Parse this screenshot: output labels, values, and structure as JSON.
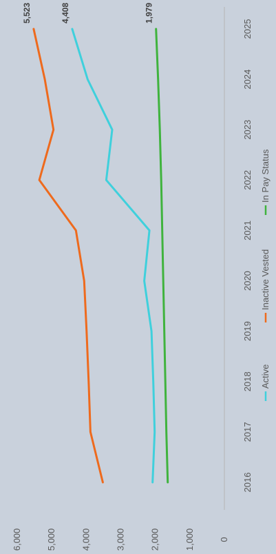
{
  "chart_data": {
    "type": "line",
    "orientation": "rotated-90-clockwise",
    "x": [
      "2016",
      "2017",
      "2018",
      "2019",
      "2020",
      "2021",
      "2022",
      "2023",
      "2024",
      "2025"
    ],
    "ylim": [
      0,
      6000
    ],
    "yticks": [
      0,
      1000,
      2000,
      3000,
      4000,
      5000,
      6000
    ],
    "ytick_labels": [
      "0",
      "1,000",
      "2,000",
      "3,000",
      "4,000",
      "5,000",
      "6,000"
    ],
    "grid": false,
    "legend_position": "bottom",
    "series": [
      {
        "name": "Active",
        "color": "#3fd0dc",
        "values": [
          2080,
          2020,
          2060,
          2110,
          2320,
          2170,
          3420,
          3250,
          3960,
          4408
        ]
      },
      {
        "name": "Inactive Vested",
        "color": "#ee6a1d",
        "values": [
          3520,
          3880,
          3930,
          3990,
          4060,
          4300,
          5360,
          4950,
          5200,
          5523
        ]
      },
      {
        "name": "In Pay Status",
        "color": "#3fb33d",
        "values": [
          1640,
          1680,
          1710,
          1740,
          1770,
          1800,
          1830,
          1870,
          1920,
          1979
        ]
      }
    ],
    "data_labels": [
      {
        "series": 1,
        "index": 9,
        "text": "5,523"
      },
      {
        "series": 0,
        "index": 9,
        "text": "4,408"
      },
      {
        "series": 2,
        "index": 9,
        "text": "1,979"
      }
    ]
  }
}
